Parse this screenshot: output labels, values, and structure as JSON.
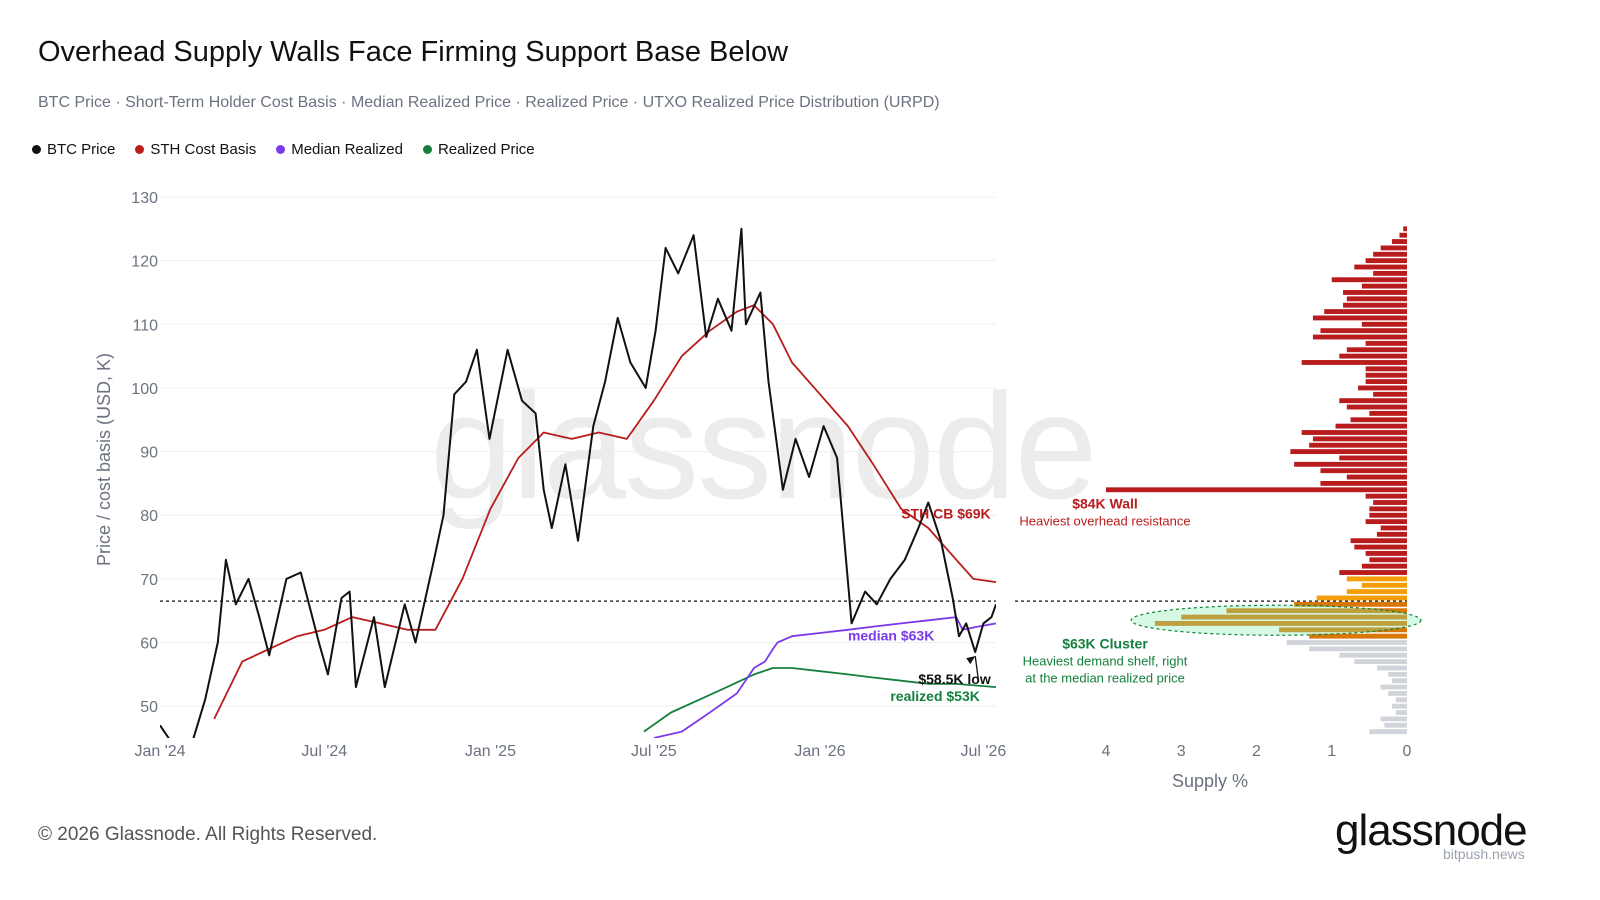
{
  "title": "Overhead Supply Walls Face Firming Support Base Below",
  "subtitle": "BTC Price · Short-Term Holder Cost Basis · Median Realized Price · Realized Price · UTXO Realized Price Distribution (URPD)",
  "legend": [
    {
      "label": "BTC Price",
      "color": "#111111"
    },
    {
      "label": "STH Cost Basis",
      "color": "#b91c1c"
    },
    {
      "label": "Median Realized",
      "color": "#7c3aed"
    },
    {
      "label": "Realized Price",
      "color": "#15803d"
    }
  ],
  "footer": "© 2026 Glassnode. All Rights Reserved.",
  "logo_text": "glassnode",
  "background_watermark": "glassnode",
  "corner_watermark": "bitpush.news",
  "chart_data": [
    {
      "type": "line",
      "ylabel": "Price / cost basis (USD, K)",
      "ylim": [
        45,
        130
      ],
      "yticks": [
        50,
        60,
        70,
        80,
        90,
        100,
        110,
        120,
        130
      ],
      "xlim": [
        "2024-01-01",
        "2026-07-15"
      ],
      "xticks": [
        {
          "label": "Jan '24",
          "date": "2024-01-01"
        },
        {
          "label": "Jul '24",
          "date": "2024-07-01"
        },
        {
          "label": "Jan '25",
          "date": "2025-01-01"
        },
        {
          "label": "Jul '25",
          "date": "2025-07-01"
        },
        {
          "label": "Jan '26",
          "date": "2026-01-01"
        },
        {
          "label": "Jul '26",
          "date": "2026-07-01"
        }
      ],
      "current_price_line": 66.5,
      "series": [
        {
          "name": "BTC Price",
          "color": "#111111",
          "points": [
            [
              "2024-01-01",
              47
            ],
            [
              "2024-01-20",
              43
            ],
            [
              "2024-02-05",
              44
            ],
            [
              "2024-02-20",
              51
            ],
            [
              "2024-03-05",
              60
            ],
            [
              "2024-03-14",
              73
            ],
            [
              "2024-03-25",
              66
            ],
            [
              "2024-04-08",
              70
            ],
            [
              "2024-04-20",
              64
            ],
            [
              "2024-05-01",
              58
            ],
            [
              "2024-05-20",
              70
            ],
            [
              "2024-06-05",
              71
            ],
            [
              "2024-06-25",
              60
            ],
            [
              "2024-07-05",
              55
            ],
            [
              "2024-07-20",
              67
            ],
            [
              "2024-07-29",
              68
            ],
            [
              "2024-08-05",
              53
            ],
            [
              "2024-08-25",
              64
            ],
            [
              "2024-09-06",
              53
            ],
            [
              "2024-09-28",
              66
            ],
            [
              "2024-10-10",
              60
            ],
            [
              "2024-10-29",
              72
            ],
            [
              "2024-11-10",
              80
            ],
            [
              "2024-11-22",
              99
            ],
            [
              "2024-12-05",
              101
            ],
            [
              "2024-12-17",
              106
            ],
            [
              "2024-12-31",
              92
            ],
            [
              "2025-01-20",
              106
            ],
            [
              "2025-02-05",
              98
            ],
            [
              "2025-02-20",
              96
            ],
            [
              "2025-03-01",
              84
            ],
            [
              "2025-03-10",
              78
            ],
            [
              "2025-03-25",
              88
            ],
            [
              "2025-04-08",
              76
            ],
            [
              "2025-04-25",
              94
            ],
            [
              "2025-05-08",
              101
            ],
            [
              "2025-05-22",
              111
            ],
            [
              "2025-06-05",
              104
            ],
            [
              "2025-06-22",
              100
            ],
            [
              "2025-07-03",
              109
            ],
            [
              "2025-07-14",
              122
            ],
            [
              "2025-07-28",
              118
            ],
            [
              "2025-08-14",
              124
            ],
            [
              "2025-08-28",
              108
            ],
            [
              "2025-09-10",
              114
            ],
            [
              "2025-09-25",
              109
            ],
            [
              "2025-10-06",
              125
            ],
            [
              "2025-10-11",
              110
            ],
            [
              "2025-10-27",
              115
            ],
            [
              "2025-11-05",
              101
            ],
            [
              "2025-11-21",
              84
            ],
            [
              "2025-12-05",
              92
            ],
            [
              "2025-12-20",
              86
            ],
            [
              "2026-01-05",
              94
            ],
            [
              "2026-01-20",
              89
            ],
            [
              "2026-02-05",
              63
            ],
            [
              "2026-02-20",
              68
            ],
            [
              "2026-03-05",
              66
            ],
            [
              "2026-03-20",
              70
            ],
            [
              "2026-04-05",
              73
            ],
            [
              "2026-04-20",
              78
            ],
            [
              "2026-05-01",
              82
            ],
            [
              "2026-05-15",
              76
            ],
            [
              "2026-05-28",
              67
            ],
            [
              "2026-06-04",
              61
            ],
            [
              "2026-06-12",
              63
            ],
            [
              "2026-06-22",
              58.5
            ],
            [
              "2026-07-01",
              63
            ],
            [
              "2026-07-10",
              64
            ],
            [
              "2026-07-15",
              66
            ]
          ]
        },
        {
          "name": "STH Cost Basis",
          "color": "#b91c1c",
          "points": [
            [
              "2024-03-01",
              48
            ],
            [
              "2024-04-01",
              57
            ],
            [
              "2024-05-01",
              59
            ],
            [
              "2024-06-01",
              61
            ],
            [
              "2024-07-01",
              62
            ],
            [
              "2024-08-01",
              64
            ],
            [
              "2024-09-01",
              63
            ],
            [
              "2024-10-01",
              62
            ],
            [
              "2024-11-01",
              62
            ],
            [
              "2024-12-01",
              70
            ],
            [
              "2025-01-01",
              81
            ],
            [
              "2025-02-01",
              89
            ],
            [
              "2025-03-01",
              93
            ],
            [
              "2025-04-01",
              92
            ],
            [
              "2025-05-01",
              93
            ],
            [
              "2025-06-01",
              92
            ],
            [
              "2025-07-01",
              98
            ],
            [
              "2025-08-01",
              105
            ],
            [
              "2025-09-01",
              109
            ],
            [
              "2025-10-01",
              112
            ],
            [
              "2025-10-20",
              113
            ],
            [
              "2025-11-10",
              110
            ],
            [
              "2025-12-01",
              104
            ],
            [
              "2026-01-01",
              99
            ],
            [
              "2026-02-01",
              94
            ],
            [
              "2026-03-01",
              88
            ],
            [
              "2026-04-01",
              81
            ],
            [
              "2026-05-01",
              78
            ],
            [
              "2026-06-01",
              73
            ],
            [
              "2026-06-20",
              70
            ],
            [
              "2026-07-15",
              69.5
            ]
          ]
        },
        {
          "name": "Median Realized",
          "color": "#7c3aed",
          "points": [
            [
              "2025-07-01",
              45
            ],
            [
              "2025-08-01",
              46
            ],
            [
              "2025-09-01",
              49
            ],
            [
              "2025-10-01",
              52
            ],
            [
              "2025-10-20",
              56
            ],
            [
              "2025-11-01",
              57
            ],
            [
              "2025-11-10",
              59
            ],
            [
              "2025-11-15",
              60
            ],
            [
              "2025-12-01",
              61
            ],
            [
              "2026-01-01",
              61.5
            ],
            [
              "2026-02-01",
              62
            ],
            [
              "2026-03-01",
              62.5
            ],
            [
              "2026-04-01",
              63
            ],
            [
              "2026-05-01",
              63.5
            ],
            [
              "2026-06-01",
              64
            ],
            [
              "2026-06-08",
              62
            ],
            [
              "2026-06-25",
              62.5
            ],
            [
              "2026-07-15",
              63
            ]
          ]
        },
        {
          "name": "Realized Price",
          "color": "#15803d",
          "points": [
            [
              "2025-06-20",
              46
            ],
            [
              "2025-07-20",
              49
            ],
            [
              "2025-08-20",
              51
            ],
            [
              "2025-09-20",
              53
            ],
            [
              "2025-10-20",
              55
            ],
            [
              "2025-11-10",
              56
            ],
            [
              "2025-12-01",
              56
            ],
            [
              "2026-01-01",
              55.5
            ],
            [
              "2026-02-01",
              55
            ],
            [
              "2026-03-01",
              54.5
            ],
            [
              "2026-04-01",
              54
            ],
            [
              "2026-05-01",
              53.5
            ],
            [
              "2026-06-01",
              53.5
            ],
            [
              "2026-07-15",
              53
            ]
          ]
        }
      ],
      "annotations": [
        {
          "text": "STH CB $69K",
          "color": "#b91c1c",
          "date": "2026-04-01",
          "y": 79.5
        },
        {
          "text": "median $63K",
          "color": "#7c3aed",
          "date": "2026-02-01",
          "y": 60.3
        },
        {
          "text": "$58.5K low",
          "color": "#111111",
          "date": "2026-04-20",
          "y": 53.5,
          "arrow_to_date": "2026-06-22",
          "arrow_to_y": 58.5
        },
        {
          "text": "realized $53K",
          "color": "#15803d",
          "date": "2026-03-20",
          "y": 50.8
        }
      ]
    },
    {
      "type": "bar",
      "orientation": "horizontal",
      "xlabel": "Supply %",
      "xlim": [
        0,
        4
      ],
      "xticks": [
        4,
        3,
        2,
        1,
        0
      ],
      "x_reversed": true,
      "annotations": [
        {
          "title": "$84K Wall",
          "text": "Heaviest overhead resistance",
          "color": "#b91c1c",
          "y": 82
        },
        {
          "title": "$63K Cluster",
          "lines": [
            "Heaviest demand shelf, right",
            "at the median realized price"
          ],
          "color": "#15803d",
          "y": 60
        }
      ],
      "highlight_ellipse": {
        "y_center": 63.5,
        "x_left": 3.8
      },
      "bins_k": [
        46,
        47,
        48,
        49,
        50,
        51,
        52,
        53,
        54,
        55,
        56,
        57,
        58,
        59,
        60,
        61,
        62,
        63,
        64,
        65,
        66,
        67,
        68,
        69,
        70,
        71,
        72,
        73,
        74,
        75,
        76,
        77,
        78,
        79,
        80,
        81,
        82,
        83,
        84,
        85,
        86,
        87,
        88,
        89,
        90,
        91,
        92,
        93,
        94,
        95,
        96,
        97,
        98,
        99,
        100,
        101,
        102,
        103,
        104,
        105,
        106,
        107,
        108,
        109,
        110,
        111,
        112,
        113,
        114,
        115,
        116,
        117,
        118,
        119,
        120,
        121,
        122,
        123,
        124,
        125
      ],
      "supply_pct": [
        0.5,
        0.3,
        0.35,
        0.15,
        0.2,
        0.15,
        0.25,
        0.35,
        0.2,
        0.25,
        0.4,
        0.7,
        0.9,
        1.3,
        1.6,
        1.3,
        1.7,
        3.35,
        3.0,
        2.4,
        1.5,
        1.2,
        0.8,
        0.6,
        0.8,
        0.9,
        0.6,
        0.5,
        0.55,
        0.7,
        0.75,
        0.4,
        0.35,
        0.55,
        0.5,
        0.5,
        0.45,
        0.55,
        4.0,
        1.15,
        0.8,
        1.15,
        1.5,
        0.9,
        1.55,
        1.3,
        1.25,
        1.4,
        0.95,
        0.75,
        0.5,
        0.8,
        0.9,
        0.45,
        0.65,
        0.55,
        0.55,
        0.55,
        1.4,
        0.9,
        0.8,
        0.55,
        1.25,
        1.15,
        0.6,
        1.25,
        1.1,
        0.85,
        0.8,
        0.85,
        0.6,
        1.0,
        0.45,
        0.7,
        0.55,
        0.45,
        0.35,
        0.2,
        0.1,
        0.05
      ]
    }
  ]
}
